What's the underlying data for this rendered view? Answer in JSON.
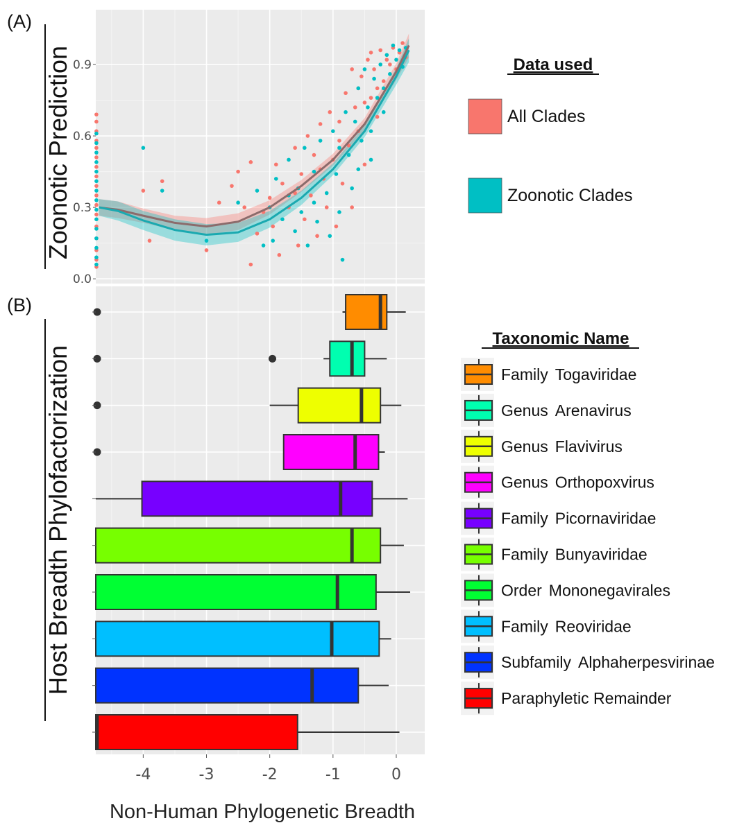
{
  "figure": {
    "panel_a_label": "(A)",
    "panel_b_label": "(B)",
    "x_axis_label": "Non-Human Phylogenetic Breadth"
  },
  "chart_data": [
    {
      "type": "scatter",
      "panel": "A",
      "ylabel": "Zoonotic Prediction",
      "xlabel": "Non-Human Phylogenetic Breadth",
      "xlim": [
        -4.75,
        0.45
      ],
      "ylim": [
        -0.02,
        1.13
      ],
      "yticks": [
        0.0,
        0.3,
        0.6,
        0.9
      ],
      "ytick_labels": [
        "0.0",
        "0.3",
        "0.6",
        "0.9"
      ],
      "grid": true,
      "legend": {
        "title": "Data used",
        "position": "right",
        "entries": [
          {
            "label": "All Clades",
            "color": "#F8766D"
          },
          {
            "label": "Zoonotic Clades",
            "color": "#00BFC4"
          }
        ]
      },
      "series": [
        {
          "name": "All Clades",
          "color": "#F8766D",
          "trend": {
            "x": [
              -4.7,
              -4.4,
              -4.0,
              -3.5,
              -3.0,
              -2.5,
              -2.0,
              -1.5,
              -1.0,
              -0.5,
              0.0,
              0.2
            ],
            "y": [
              0.3,
              0.29,
              0.265,
              0.235,
              0.22,
              0.24,
              0.3,
              0.39,
              0.5,
              0.65,
              0.87,
              0.98
            ],
            "ci_halfwidth": [
              0.035,
              0.035,
              0.03,
              0.03,
              0.035,
              0.035,
              0.03,
              0.025,
              0.025,
              0.025,
              0.035,
              0.05
            ]
          },
          "points": [
            [
              -4.74,
              0.69
            ],
            [
              -4.74,
              0.66
            ],
            [
              -4.74,
              0.62
            ],
            [
              -4.74,
              0.58
            ],
            [
              -4.74,
              0.55
            ],
            [
              -4.74,
              0.51
            ],
            [
              -4.74,
              0.47
            ],
            [
              -4.74,
              0.43
            ],
            [
              -4.74,
              0.39
            ],
            [
              -4.74,
              0.35
            ],
            [
              -4.74,
              0.31
            ],
            [
              -4.74,
              0.27
            ],
            [
              -4.74,
              0.22
            ],
            [
              -4.74,
              0.17
            ],
            [
              -4.74,
              0.12
            ],
            [
              -4.74,
              0.08
            ],
            [
              -4.74,
              0.05
            ],
            [
              -4.0,
              0.37
            ],
            [
              -3.9,
              0.16
            ],
            [
              -3.7,
              0.41
            ],
            [
              -3.0,
              0.12
            ],
            [
              -2.8,
              0.32
            ],
            [
              -2.6,
              0.39
            ],
            [
              -2.5,
              0.45
            ],
            [
              -2.4,
              0.3
            ],
            [
              -2.3,
              0.49
            ],
            [
              -2.3,
              0.06
            ],
            [
              -2.2,
              0.19
            ],
            [
              -2.1,
              0.28
            ],
            [
              -2.0,
              0.34
            ],
            [
              -1.95,
              0.22
            ],
            [
              -1.9,
              0.48
            ],
            [
              -1.85,
              0.1
            ],
            [
              -1.8,
              0.4
            ],
            [
              -1.7,
              0.3
            ],
            [
              -1.6,
              0.55
            ],
            [
              -1.55,
              0.14
            ],
            [
              -1.5,
              0.44
            ],
            [
              -1.45,
              0.25
            ],
            [
              -1.4,
              0.6
            ],
            [
              -1.35,
              0.35
            ],
            [
              -1.3,
              0.52
            ],
            [
              -1.25,
              0.18
            ],
            [
              -1.2,
              0.65
            ],
            [
              -1.15,
              0.42
            ],
            [
              -1.1,
              0.3
            ],
            [
              -1.05,
              0.7
            ],
            [
              -1.0,
              0.5
            ],
            [
              -0.95,
              0.22
            ],
            [
              -0.9,
              0.66
            ],
            [
              -0.85,
              0.4
            ],
            [
              -0.8,
              0.78
            ],
            [
              -0.75,
              0.56
            ],
            [
              -0.7,
              0.3
            ],
            [
              -0.65,
              0.72
            ],
            [
              -0.6,
              0.62
            ],
            [
              -0.55,
              0.85
            ],
            [
              -0.5,
              0.48
            ],
            [
              -0.45,
              0.92
            ],
            [
              -0.4,
              0.76
            ],
            [
              -0.35,
              0.88
            ],
            [
              -0.3,
              0.68
            ],
            [
              -0.25,
              0.96
            ],
            [
              -0.2,
              0.83
            ],
            [
              -0.15,
              0.92
            ],
            [
              -0.1,
              0.9
            ],
            [
              -0.05,
              0.97
            ],
            [
              0.0,
              0.88
            ],
            [
              0.05,
              0.95
            ],
            [
              0.1,
              0.99
            ],
            [
              0.15,
              0.93
            ],
            [
              -0.6,
              0.8
            ],
            [
              -0.5,
              0.74
            ],
            [
              -1.2,
              0.46
            ],
            [
              -0.9,
              0.58
            ],
            [
              -1.6,
              0.36
            ],
            [
              -0.4,
              0.95
            ],
            [
              -0.3,
              0.8
            ],
            [
              -0.7,
              0.88
            ]
          ]
        },
        {
          "name": "Zoonotic Clades",
          "color": "#00BFC4",
          "trend": {
            "x": [
              -4.7,
              -4.4,
              -4.0,
              -3.5,
              -3.0,
              -2.5,
              -2.0,
              -1.5,
              -1.0,
              -0.5,
              0.0,
              0.2
            ],
            "y": [
              0.3,
              0.285,
              0.245,
              0.205,
              0.185,
              0.195,
              0.25,
              0.34,
              0.46,
              0.62,
              0.85,
              0.96
            ],
            "ci_halfwidth": [
              0.035,
              0.04,
              0.04,
              0.045,
              0.045,
              0.04,
              0.035,
              0.03,
              0.025,
              0.025,
              0.035,
              0.05
            ]
          },
          "points": [
            [
              -4.74,
              0.61
            ],
            [
              -4.74,
              0.57
            ],
            [
              -4.74,
              0.53
            ],
            [
              -4.74,
              0.49
            ],
            [
              -4.74,
              0.45
            ],
            [
              -4.74,
              0.41
            ],
            [
              -4.74,
              0.37
            ],
            [
              -4.74,
              0.33
            ],
            [
              -4.74,
              0.29
            ],
            [
              -4.74,
              0.25
            ],
            [
              -4.74,
              0.21
            ],
            [
              -4.74,
              0.17
            ],
            [
              -4.74,
              0.13
            ],
            [
              -4.74,
              0.09
            ],
            [
              -4.74,
              0.06
            ],
            [
              -4.0,
              0.55
            ],
            [
              -3.7,
              0.37
            ],
            [
              -3.0,
              0.16
            ],
            [
              -2.5,
              0.32
            ],
            [
              -2.2,
              0.37
            ],
            [
              -2.1,
              0.14
            ],
            [
              -2.0,
              0.3
            ],
            [
              -1.95,
              0.16
            ],
            [
              -1.9,
              0.42
            ],
            [
              -1.8,
              0.25
            ],
            [
              -1.7,
              0.5
            ],
            [
              -1.6,
              0.2
            ],
            [
              -1.55,
              0.38
            ],
            [
              -1.5,
              0.28
            ],
            [
              -1.45,
              0.55
            ],
            [
              -1.4,
              0.14
            ],
            [
              -1.3,
              0.45
            ],
            [
              -1.25,
              0.24
            ],
            [
              -1.2,
              0.58
            ],
            [
              -1.1,
              0.36
            ],
            [
              -1.05,
              0.18
            ],
            [
              -1.0,
              0.62
            ],
            [
              -0.95,
              0.44
            ],
            [
              -0.9,
              0.28
            ],
            [
              -0.85,
              0.08
            ],
            [
              -0.8,
              0.7
            ],
            [
              -0.75,
              0.52
            ],
            [
              -0.7,
              0.38
            ],
            [
              -0.65,
              0.66
            ],
            [
              -0.6,
              0.8
            ],
            [
              -0.55,
              0.58
            ],
            [
              -0.5,
              0.88
            ],
            [
              -0.45,
              0.72
            ],
            [
              -0.4,
              0.5
            ],
            [
              -0.35,
              0.84
            ],
            [
              -0.3,
              0.76
            ],
            [
              -0.25,
              0.9
            ],
            [
              -0.2,
              0.7
            ],
            [
              -0.15,
              0.94
            ],
            [
              -0.1,
              0.86
            ],
            [
              -0.05,
              0.98
            ],
            [
              0.0,
              0.92
            ],
            [
              0.05,
              0.96
            ],
            [
              0.1,
              0.89
            ],
            [
              0.15,
              0.97
            ],
            [
              -0.9,
              0.55
            ],
            [
              -1.3,
              0.32
            ],
            [
              -0.4,
              0.62
            ],
            [
              -0.2,
              0.8
            ],
            [
              -0.6,
              0.46
            ],
            [
              -1.7,
              0.35
            ]
          ]
        }
      ]
    },
    {
      "type": "boxplot",
      "panel": "B",
      "ylabel": "Host Breadth Phylofactorization",
      "xlabel": "Non-Human Phylogenetic Breadth",
      "xlim": [
        -4.75,
        0.45
      ],
      "xticks": [
        -4,
        -3,
        -2,
        -1,
        0
      ],
      "xtick_labels": [
        "-4",
        "-3",
        "-2",
        "-1",
        "0"
      ],
      "grid": true,
      "legend": {
        "title": "Taxonomic Name",
        "position": "right"
      },
      "categories": [
        {
          "rank": "Family",
          "name": "Togaviridae",
          "color": "#FF8C00",
          "whisker_low": -0.85,
          "q1": -0.8,
          "median": -0.25,
          "q3": -0.15,
          "whisker_high": 0.15,
          "outliers": [
            -4.75
          ]
        },
        {
          "rank": "Genus",
          "name": "Arenavirus",
          "color": "#00FFB0",
          "whisker_low": -1.15,
          "q1": -1.05,
          "median": -0.7,
          "q3": -0.5,
          "whisker_high": -0.15,
          "outliers": [
            -4.75,
            -1.98
          ]
        },
        {
          "rank": "Genus",
          "name": "Flavivirus",
          "color": "#EEFF00",
          "whisker_low": -2.0,
          "q1": -1.55,
          "median": -0.55,
          "q3": -0.25,
          "whisker_high": 0.08,
          "outliers": [
            -4.75
          ]
        },
        {
          "rank": "Genus",
          "name": "Orthopoxvirus",
          "color": "#FF00FF",
          "whisker_low": -1.78,
          "q1": -1.78,
          "median": -0.65,
          "q3": -0.28,
          "whisker_high": -0.18,
          "outliers": [
            -4.75
          ]
        },
        {
          "rank": "Family",
          "name": "Picornaviridae",
          "color": "#7700FF",
          "whisker_low": -4.75,
          "q1": -4.02,
          "median": -0.88,
          "q3": -0.38,
          "whisker_high": 0.18,
          "outliers": []
        },
        {
          "rank": "Family",
          "name": "Bunyaviridae",
          "color": "#77FF00",
          "whisker_low": -4.75,
          "q1": -4.75,
          "median": -0.7,
          "q3": -0.25,
          "whisker_high": 0.12,
          "outliers": []
        },
        {
          "rank": "Order",
          "name": "Mononegavirales",
          "color": "#00FF33",
          "whisker_low": -4.75,
          "q1": -4.75,
          "median": -0.93,
          "q3": -0.32,
          "whisker_high": 0.22,
          "outliers": []
        },
        {
          "rank": "Family",
          "name": "Reoviridae",
          "color": "#00BFFF",
          "whisker_low": -4.75,
          "q1": -4.75,
          "median": -1.02,
          "q3": -0.27,
          "whisker_high": -0.08,
          "outliers": []
        },
        {
          "rank": "Subfamily",
          "name": "Alphaherpesvirinae",
          "color": "#0033FF",
          "whisker_low": -4.75,
          "q1": -4.75,
          "median": -1.33,
          "q3": -0.6,
          "whisker_high": -0.12,
          "outliers": []
        },
        {
          "rank": "",
          "name": "Paraphyletic Remainder",
          "color": "#FF0000",
          "whisker_low": -4.75,
          "q1": -4.75,
          "median": -4.73,
          "q3": -1.56,
          "whisker_high": 0.05,
          "outliers": []
        }
      ]
    }
  ]
}
